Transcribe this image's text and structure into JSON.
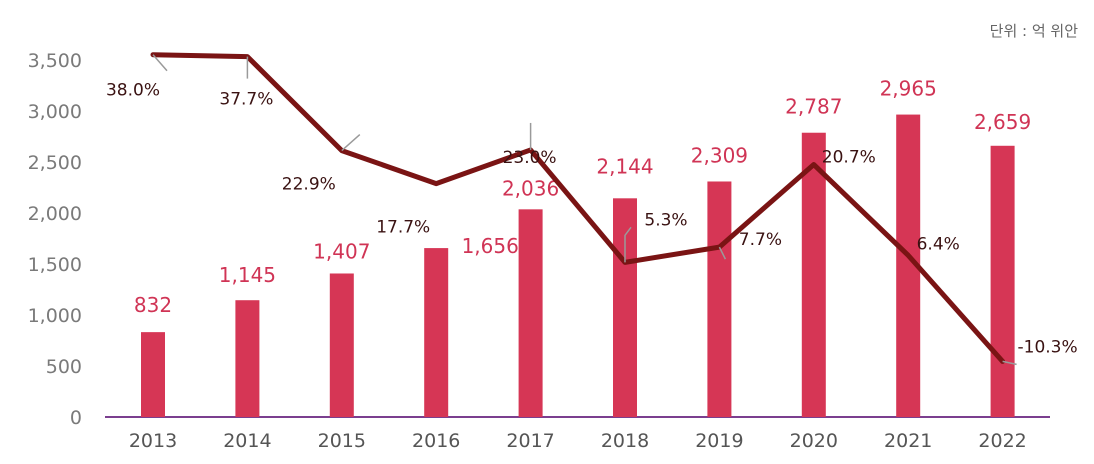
{
  "unit_label": "단위 : 억 위안",
  "colors": {
    "bar": "#d63655",
    "line": "#7a1414",
    "axis": "#7b3f8f",
    "leader": "#9a9a9a"
  },
  "chart_data": {
    "type": "bar",
    "categories": [
      "2013",
      "2014",
      "2015",
      "2016",
      "2017",
      "2018",
      "2019",
      "2020",
      "2021",
      "2022"
    ],
    "series": [
      {
        "values": [
          832,
          1145,
          1407,
          1656,
          2036,
          2144,
          2309,
          2787,
          2965,
          2659
        ]
      }
    ],
    "value_labels": [
      "832",
      "1,145",
      "1,407",
      "1,656",
      "2,036",
      "2,144",
      "2,309",
      "2,787",
      "2,965",
      "2,659"
    ],
    "rate_series": {
      "values": [
        38.0,
        37.7,
        22.9,
        17.7,
        23.0,
        5.3,
        7.7,
        20.7,
        6.4,
        -10.3
      ],
      "labels": [
        "38.0%",
        "37.7%",
        "22.9%",
        "17.7%",
        "23.0%",
        "5.3%",
        "7.7%",
        "20.7%",
        "6.4%",
        "-10.3%"
      ]
    },
    "ylim": [
      0,
      3500
    ],
    "yticks": [
      "0",
      "500",
      "1,000",
      "1,500",
      "2,000",
      "2,500",
      "3,000",
      "3,500"
    ],
    "grid": false
  }
}
